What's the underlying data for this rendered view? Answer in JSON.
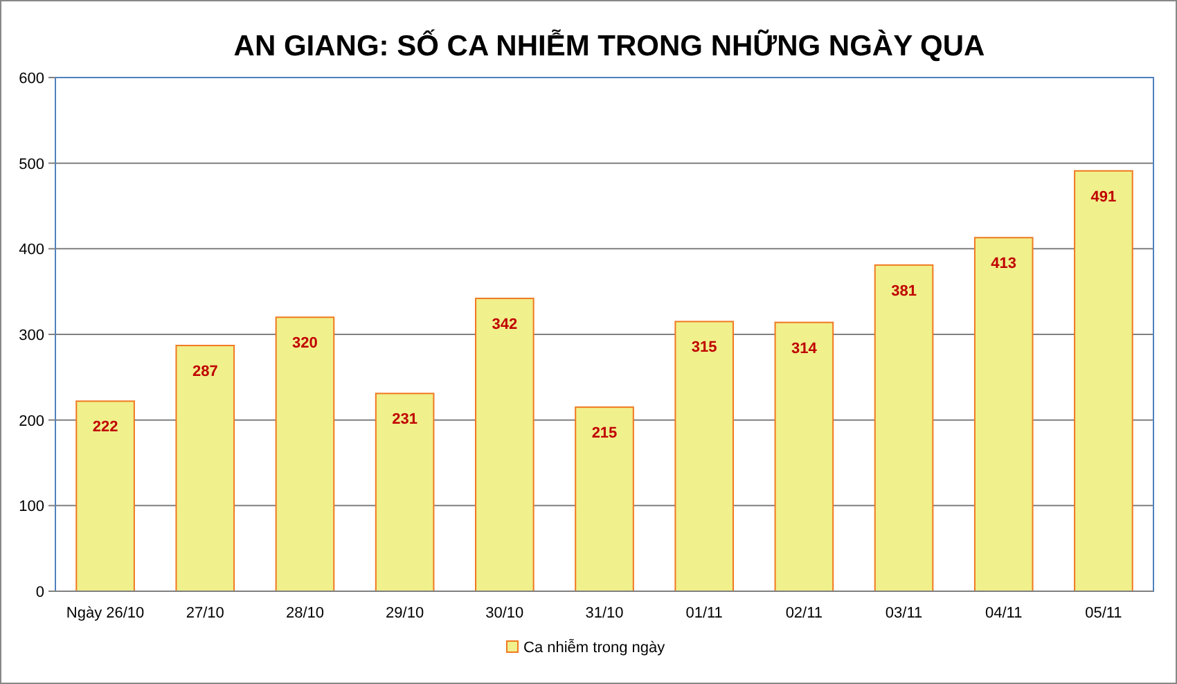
{
  "chart_data": {
    "type": "bar",
    "title": "AN GIANG: SỐ CA NHIỄM TRONG NHỮNG NGÀY QUA",
    "categories": [
      "Ngày 26/10",
      "27/10",
      "28/10",
      "29/10",
      "30/10",
      "31/10",
      "01/11",
      "02/11",
      "03/11",
      "04/11",
      "05/11"
    ],
    "series": [
      {
        "name": "Ca nhiễm trong ngày",
        "color": "#f0f08c",
        "values": [
          222,
          287,
          320,
          231,
          342,
          215,
          315,
          314,
          381,
          413,
          491
        ]
      }
    ],
    "ylim": [
      0,
      600
    ],
    "yticks": [
      0,
      100,
      200,
      300,
      400,
      500,
      600
    ],
    "grid": "y",
    "legend": "bottom",
    "data_labels": true
  }
}
